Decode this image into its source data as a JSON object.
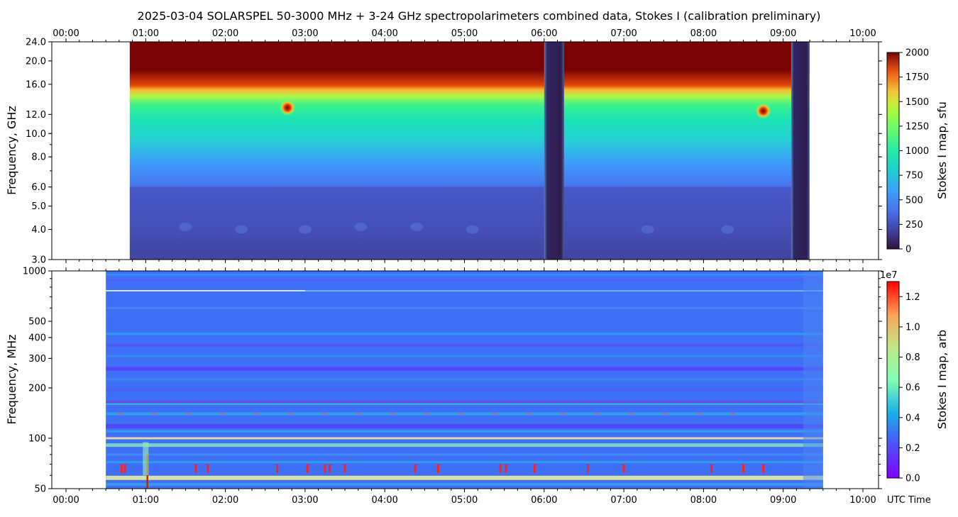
{
  "title": "2025-03-04  SOLARSPEL  50-3000 MHz  +  3-24 GHz  spectropolarimeters combined data,  Stokes I  (calibration preliminary)",
  "colors": {
    "turbo_low": "#30123b",
    "turbo_mid": "#1ae4b6",
    "turbo_high": "#7a0403",
    "rainbow_low": "#8000ff",
    "rainbow_mid": "#80ffb4",
    "rainbow_high": "#ff0000"
  },
  "chart_data": [
    {
      "type": "heatmap",
      "panel": "top",
      "title": "",
      "xlabel": "",
      "ylabel": "Frequency, GHz",
      "x_ticks": [
        "00:00",
        "01:00",
        "02:00",
        "03:00",
        "04:00",
        "05:00",
        "06:00",
        "07:00",
        "08:00",
        "09:00",
        "10:00"
      ],
      "x_range_hours": [
        0,
        10
      ],
      "y_scale": "log",
      "y_range": [
        3.0,
        24.0
      ],
      "y_ticks": [
        {
          "value": 3.0,
          "label": "3.0"
        },
        {
          "value": 4.0,
          "label": "4.0"
        },
        {
          "value": 5.0,
          "label": "5.0"
        },
        {
          "value": 6.0,
          "label": "6.0"
        },
        {
          "value": 8.0,
          "label": "8.0"
        },
        {
          "value": 10.0,
          "label": "10.0"
        },
        {
          "value": 12.0,
          "label": "12.0"
        },
        {
          "value": 16.0,
          "label": "16.0"
        },
        {
          "value": 20.0,
          "label": "20.0"
        },
        {
          "value": 24.0,
          "label": "24.0"
        }
      ],
      "data_extent_hours": [
        0.8,
        9.33
      ],
      "gaps_hours": [
        [
          6.0,
          6.25
        ],
        [
          9.1,
          9.33
        ]
      ],
      "colorbar": {
        "label": "Stokes I map, sfu",
        "range": [
          0,
          2000
        ],
        "ticks": [
          "0",
          "250",
          "500",
          "750",
          "1000",
          "1250",
          "1500",
          "1750",
          "2000"
        ],
        "colormap": "turbo"
      },
      "features": [
        {
          "kind": "burst",
          "time_hours": 2.78,
          "freq_ghz": 12.8
        },
        {
          "kind": "burst",
          "time_hours": 8.75,
          "freq_ghz": 12.4
        }
      ]
    },
    {
      "type": "heatmap",
      "panel": "bottom",
      "title": "",
      "xlabel": "UTC Time",
      "ylabel": "Frequency, MHz",
      "x_ticks": [
        "00:00",
        "01:00",
        "02:00",
        "03:00",
        "04:00",
        "05:00",
        "06:00",
        "07:00",
        "08:00",
        "09:00",
        "10:00"
      ],
      "x_range_hours": [
        0,
        10
      ],
      "y_scale": "log",
      "y_range": [
        50,
        1000
      ],
      "y_ticks": [
        {
          "value": 50,
          "label": "50"
        },
        {
          "value": 100,
          "label": "100"
        },
        {
          "value": 200,
          "label": "200"
        },
        {
          "value": 300,
          "label": "300"
        },
        {
          "value": 400,
          "label": "400"
        },
        {
          "value": 500,
          "label": "500"
        },
        {
          "value": 1000,
          "label": "1000"
        }
      ],
      "data_extent_hours": [
        0.5,
        9.5
      ],
      "colorbar": {
        "label": "Stokes I map, arb",
        "range": [
          0,
          1.3
        ],
        "exponent": "1e7",
        "ticks": [
          "0.0",
          "0.2",
          "0.4",
          "0.6",
          "0.8",
          "1.0",
          "1.2"
        ],
        "colormap": "rainbow"
      },
      "rfi_bursts_hours": [
        0.7,
        0.74,
        1.63,
        1.78,
        2.65,
        3.03,
        3.25,
        3.31,
        3.5,
        4.38,
        4.67,
        5.45,
        5.52,
        5.88,
        6.55,
        7.0,
        8.1,
        8.5,
        8.75
      ]
    }
  ]
}
